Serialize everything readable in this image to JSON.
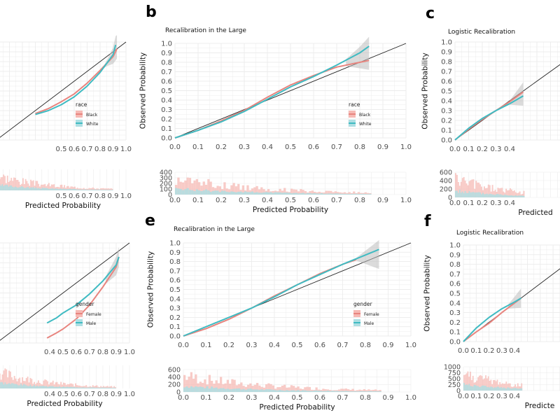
{
  "colors": {
    "salmon": "#E8847E",
    "teal": "#3FBBC2",
    "salmon_fill": "#F6B9B4",
    "teal_fill": "#AEDFE3",
    "grid": "#ECECEC",
    "axis_text": "#4D4D4D",
    "band": "#BDBDBD"
  },
  "chart_data": [
    {
      "panel_label": "",
      "type": "line",
      "title": "",
      "xlabel": "",
      "ylabel": "",
      "xlim": [
        0,
        1
      ],
      "ylim": [
        0,
        1
      ],
      "x_ticks": [
        "0.5",
        "0.6",
        "0.7",
        "0.8",
        "0.9",
        "1.0"
      ],
      "y_ticks": [],
      "legend": {
        "title": "race",
        "entries": [
          "Black",
          "White"
        ]
      },
      "reference_line": {
        "name": "perfect calibration",
        "from": [
          0,
          0
        ],
        "to": [
          1,
          1
        ]
      },
      "series": [
        {
          "name": "Black",
          "color": "salmon",
          "x": [
            0.3,
            0.4,
            0.5,
            0.6,
            0.7,
            0.8,
            0.9,
            0.93
          ],
          "y": [
            0.27,
            0.32,
            0.39,
            0.47,
            0.58,
            0.71,
            0.85,
            0.93
          ]
        },
        {
          "name": "White",
          "color": "teal",
          "x": [
            0.3,
            0.4,
            0.5,
            0.6,
            0.7,
            0.8,
            0.9,
            0.92
          ],
          "y": [
            0.26,
            0.3,
            0.36,
            0.44,
            0.55,
            0.69,
            0.87,
            0.97
          ]
        }
      ],
      "histogram": {
        "xlabel": "Predicted Probability",
        "y_ticks": []
      }
    },
    {
      "panel_label": "b",
      "type": "line",
      "title": "Recalibration in the Large",
      "xlabel": "",
      "ylabel": "Observed Probability",
      "xlim": [
        0,
        1
      ],
      "ylim": [
        0,
        1
      ],
      "x_ticks": [
        "0.0",
        "0.1",
        "0.2",
        "0.3",
        "0.4",
        "0.5",
        "0.6",
        "0.7",
        "0.8",
        "0.9",
        "1.0"
      ],
      "y_ticks": [
        "0.0",
        "0.1",
        "0.2",
        "0.3",
        "0.4",
        "0.5",
        "0.6",
        "0.7",
        "0.8",
        "0.9",
        "1.0"
      ],
      "legend": {
        "title": "race",
        "entries": [
          "Black",
          "White"
        ]
      },
      "reference_line": {
        "name": "perfect calibration",
        "from": [
          0,
          0
        ],
        "to": [
          1,
          1
        ]
      },
      "series": [
        {
          "name": "Black",
          "color": "salmon",
          "x": [
            0.0,
            0.1,
            0.2,
            0.3,
            0.4,
            0.5,
            0.6,
            0.7,
            0.8,
            0.84
          ],
          "y": [
            0.0,
            0.08,
            0.18,
            0.29,
            0.43,
            0.56,
            0.66,
            0.75,
            0.8,
            0.82
          ]
        },
        {
          "name": "White",
          "color": "teal",
          "x": [
            0.0,
            0.1,
            0.2,
            0.3,
            0.4,
            0.5,
            0.6,
            0.7,
            0.8,
            0.84
          ],
          "y": [
            0.0,
            0.08,
            0.17,
            0.28,
            0.41,
            0.54,
            0.65,
            0.77,
            0.9,
            0.97
          ]
        }
      ],
      "histogram": {
        "xlabel": "Predicted Probability",
        "y_ticks": [
          "400",
          "300",
          "200",
          "100",
          "0"
        ]
      }
    },
    {
      "panel_label": "c",
      "type": "line",
      "title": "Logistic Recalibration",
      "xlabel": "",
      "ylabel": "Observed Probability",
      "xlim": [
        0,
        1
      ],
      "ylim": [
        0,
        1
      ],
      "x_ticks": [
        "0.0",
        "0.1",
        "0.2",
        "0.3",
        "0.4"
      ],
      "y_ticks": [
        "0.0",
        "0.1",
        "0.2",
        "0.3",
        "0.4",
        "0.5",
        "0.6",
        "0.7",
        "0.8",
        "0.9",
        "1.0"
      ],
      "legend": null,
      "reference_line": {
        "name": "perfect calibration",
        "from": [
          0,
          0
        ],
        "to": [
          1,
          1
        ]
      },
      "series": [
        {
          "name": "Black",
          "color": "salmon",
          "x": [
            0.0,
            0.1,
            0.2,
            0.3,
            0.4,
            0.5
          ],
          "y": [
            0.0,
            0.11,
            0.21,
            0.3,
            0.39,
            0.49
          ]
        },
        {
          "name": "White",
          "color": "teal",
          "x": [
            0.0,
            0.1,
            0.2,
            0.3,
            0.4,
            0.5
          ],
          "y": [
            0.0,
            0.12,
            0.22,
            0.3,
            0.37,
            0.45
          ]
        }
      ],
      "histogram": {
        "xlabel": "Predicted",
        "y_ticks": [
          "600",
          "400",
          "200",
          "0"
        ]
      }
    },
    {
      "panel_label": "",
      "type": "line",
      "title": "",
      "xlabel": "",
      "ylabel": "",
      "xlim": [
        0,
        1
      ],
      "ylim": [
        0,
        1
      ],
      "x_ticks": [
        "0.4",
        "0.5",
        "0.6",
        "0.7",
        "0.8",
        "0.9",
        "1.0"
      ],
      "y_ticks": [],
      "legend": {
        "title": "gender",
        "entries": [
          "Female",
          "Male"
        ]
      },
      "reference_line": {
        "name": "perfect calibration",
        "from": [
          0,
          0
        ],
        "to": [
          1,
          1
        ]
      },
      "series": [
        {
          "name": "Female",
          "color": "salmon",
          "x": [
            0.38,
            0.45,
            0.5,
            0.6,
            0.7,
            0.8,
            0.9,
            0.92
          ],
          "y": [
            0.05,
            0.1,
            0.14,
            0.24,
            0.38,
            0.56,
            0.76,
            0.86
          ]
        },
        {
          "name": "Male",
          "color": "teal",
          "x": [
            0.38,
            0.45,
            0.5,
            0.6,
            0.7,
            0.8,
            0.9,
            0.92
          ],
          "y": [
            0.2,
            0.25,
            0.3,
            0.38,
            0.49,
            0.62,
            0.78,
            0.86
          ]
        }
      ],
      "histogram": {
        "xlabel": "Predicted Probability",
        "y_ticks": []
      }
    },
    {
      "panel_label": "e",
      "type": "line",
      "title": "Recalibration in the Large",
      "xlabel": "",
      "ylabel": "Observed Probability",
      "xlim": [
        0,
        1
      ],
      "ylim": [
        0,
        1
      ],
      "x_ticks": [
        "0.0",
        "0.1",
        "0.2",
        "0.3",
        "0.4",
        "0.5",
        "0.6",
        "0.7",
        "0.8",
        "0.9",
        "1.0"
      ],
      "y_ticks": [
        "0.0",
        "0.1",
        "0.2",
        "0.3",
        "0.4",
        "0.5",
        "0.6",
        "0.7",
        "0.8",
        "0.9",
        "1.0"
      ],
      "legend": {
        "title": "gender",
        "entries": [
          "Female",
          "Male"
        ]
      },
      "reference_line": {
        "name": "perfect calibration",
        "from": [
          0,
          0
        ],
        "to": [
          1,
          1
        ]
      },
      "series": [
        {
          "name": "Female",
          "color": "salmon",
          "x": [
            0.0,
            0.1,
            0.2,
            0.3,
            0.4,
            0.5,
            0.6,
            0.7,
            0.76
          ],
          "y": [
            0.0,
            0.08,
            0.18,
            0.3,
            0.43,
            0.55,
            0.67,
            0.77,
            0.82
          ]
        },
        {
          "name": "Male",
          "color": "teal",
          "x": [
            0.0,
            0.1,
            0.2,
            0.3,
            0.4,
            0.5,
            0.6,
            0.7,
            0.8,
            0.86
          ],
          "y": [
            0.0,
            0.1,
            0.2,
            0.3,
            0.42,
            0.55,
            0.66,
            0.77,
            0.87,
            0.93
          ]
        }
      ],
      "histogram": {
        "xlabel": "Predicted Probability",
        "y_ticks": [
          "600",
          "400",
          "200",
          "0"
        ]
      }
    },
    {
      "panel_label": "f",
      "type": "line",
      "title": "Logistic Recalibration",
      "xlabel": "",
      "ylabel": "Observed Probability",
      "xlim": [
        0,
        1
      ],
      "ylim": [
        0,
        1
      ],
      "x_ticks": [
        "0.0",
        "0.1",
        "0.2",
        "0.3",
        "0.4"
      ],
      "y_ticks": [
        "0.0",
        "0.1",
        "0.2",
        "0.3",
        "0.4",
        "0.5",
        "0.6",
        "0.7",
        "0.8",
        "0.9",
        "1.0"
      ],
      "legend": null,
      "reference_line": {
        "name": "perfect calibration",
        "from": [
          0,
          0
        ],
        "to": [
          1,
          1
        ]
      },
      "series": [
        {
          "name": "Female",
          "color": "salmon",
          "x": [
            0.0,
            0.1,
            0.2,
            0.3,
            0.4,
            0.45
          ],
          "y": [
            0.0,
            0.1,
            0.19,
            0.3,
            0.4,
            0.45
          ]
        },
        {
          "name": "Male",
          "color": "teal",
          "x": [
            0.0,
            0.1,
            0.2,
            0.3,
            0.4,
            0.45
          ],
          "y": [
            0.0,
            0.14,
            0.25,
            0.34,
            0.41,
            0.45
          ]
        }
      ],
      "histogram": {
        "xlabel": "Predicte",
        "y_ticks": [
          "1000",
          "750",
          "500",
          "250",
          "0"
        ]
      }
    }
  ]
}
